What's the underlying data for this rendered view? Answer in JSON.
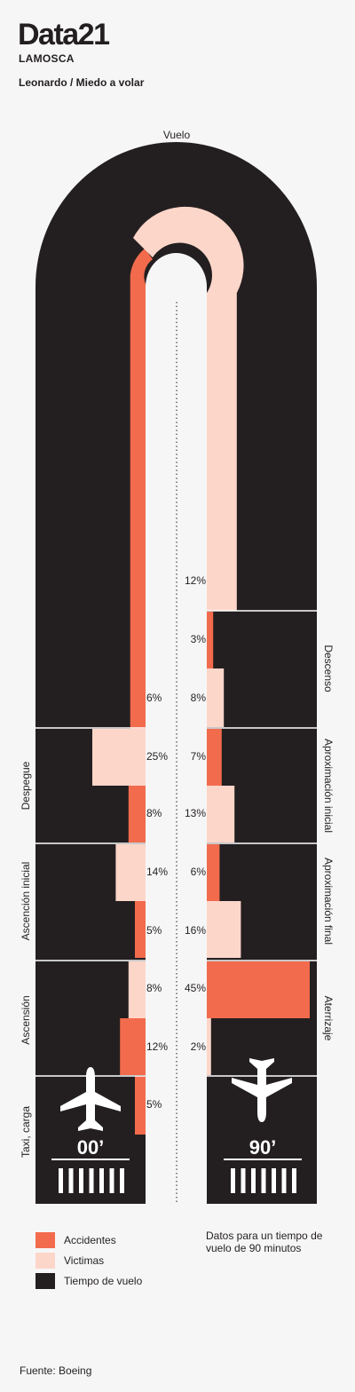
{
  "header": {
    "brand": "Data21",
    "publisher": "LAMOSCA",
    "byline": "Leonardo / Miedo a volar"
  },
  "colors": {
    "accidents": "#f26b4d",
    "victims": "#fdd6ca",
    "flight_time": "#231f20",
    "background": "#f6f6f6"
  },
  "chart_data": {
    "type": "bar",
    "top_label": "Vuelo",
    "categories": [
      "Taxi, carga",
      "Ascensión",
      "Ascención inicial",
      "Despegue",
      "Vuelo",
      "Descenso",
      "Aproximación inicial",
      "Aproximación final",
      "Aterrizaje"
    ],
    "series": [
      {
        "name": "Accidentes",
        "values": [
          5,
          12,
          5,
          8,
          6,
          3,
          7,
          6,
          45
        ],
        "labels": [
          "5%",
          "12%",
          "5%",
          "8%",
          "6%",
          "3%",
          "7%",
          "6%",
          "45%"
        ]
      },
      {
        "name": "Victimas",
        "values": [
          null,
          8,
          14,
          25,
          12,
          8,
          13,
          16,
          2
        ],
        "labels": [
          "",
          "8%",
          "14%",
          "25%",
          "12%",
          "8%",
          "13%",
          "16%",
          "2%"
        ]
      }
    ],
    "taxi_start_label": "00’",
    "taxi_end_label": "90’",
    "icons": [
      "airplane-takeoff-icon",
      "airplane-landing-icon",
      "runway-marks-icon"
    ]
  },
  "legend": {
    "items": [
      {
        "label": "Accidentes",
        "color": "#f26b4d"
      },
      {
        "label": "Victimas",
        "color": "#fdd6ca"
      },
      {
        "label": "Tiempo de vuelo",
        "color": "#231f20"
      }
    ]
  },
  "note": "Datos para un tiempo de vuelo de 90 minutos",
  "source": "Fuente: Boeing"
}
